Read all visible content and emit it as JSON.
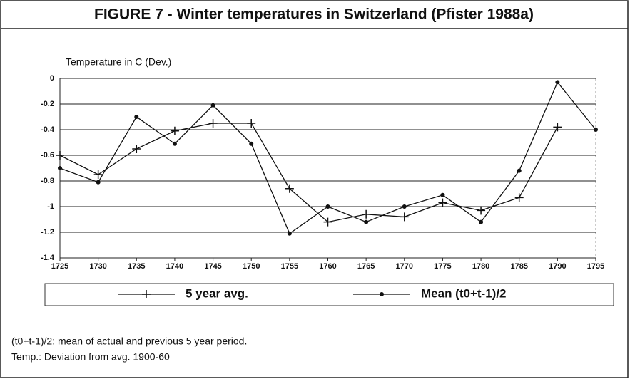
{
  "chart_data": {
    "type": "line",
    "title": "FIGURE 7 - Winter temperatures in Switzerland (Pfister 1988a)",
    "y_label": "Temperature in C (Dev.)",
    "x": [
      1725,
      1730,
      1735,
      1740,
      1745,
      1750,
      1755,
      1760,
      1765,
      1770,
      1775,
      1780,
      1785,
      1790,
      1795
    ],
    "series": [
      {
        "name": "5 year avg.",
        "color": "#111111",
        "marker": "plus",
        "values": [
          -0.6,
          -0.75,
          -0.55,
          -0.41,
          -0.35,
          -0.35,
          -0.86,
          -1.12,
          -1.06,
          -1.08,
          -0.97,
          -1.03,
          -0.93,
          -0.38,
          null
        ]
      },
      {
        "name": "Mean (t0+t-1)/2",
        "color": "#111111",
        "marker": "circle",
        "values": [
          -0.7,
          -0.81,
          -0.3,
          -0.51,
          -0.21,
          -0.51,
          -1.21,
          -1.0,
          -1.12,
          -1.0,
          -0.91,
          -1.12,
          -0.72,
          -0.03,
          -0.4
        ]
      }
    ],
    "xlim": [
      1725,
      1795
    ],
    "xticks": [
      1725,
      1730,
      1735,
      1740,
      1745,
      1750,
      1755,
      1760,
      1765,
      1770,
      1775,
      1780,
      1785,
      1790,
      1795
    ],
    "ylim": [
      -1.4,
      0
    ],
    "yticks": [
      0,
      -0.2,
      -0.4,
      -0.6,
      -0.8,
      -1,
      -1.2,
      -1.4
    ],
    "grid": true,
    "notes": [
      "(t0+t-1)/2: mean of actual and previous 5 year period.",
      "Temp.: Deviation from avg. 1900-60"
    ]
  }
}
